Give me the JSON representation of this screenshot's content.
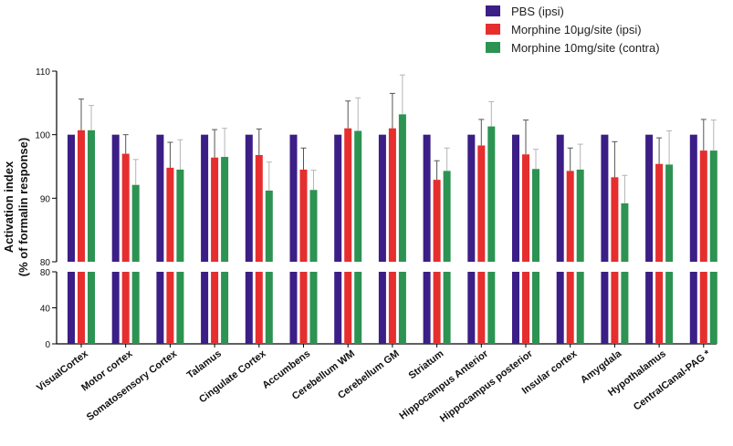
{
  "colors": {
    "pbs": "#3b1e86",
    "morphine_ipsi": "#e62e2e",
    "morphine_contra": "#2c9352",
    "error_pbs": "#555555",
    "error_morphine_ipsi": "#555555",
    "error_morphine_contra": "#b5b5b5"
  },
  "chart_data": {
    "type": "bar",
    "ylabel_line1": "Activation index",
    "ylabel_line2": "(% of formalin response)",
    "y_axis_break": true,
    "upper_panel": {
      "ylim": [
        80,
        110
      ],
      "ticks": [
        "80",
        "90",
        "100",
        "110"
      ]
    },
    "lower_panel": {
      "ylim": [
        0,
        80
      ],
      "ticks": [
        "0",
        "40",
        "80"
      ]
    },
    "categories": [
      "VisualCortex",
      "Motor cortex",
      "Somatosensory Cortex",
      "Talamus",
      "Cingulate Cortex",
      "Accumbens",
      "Cerebellum WM",
      "Cerebellum GM",
      "Striatum",
      "Hippocampus Anterior",
      "Hippocampus posterior",
      "Insular cortex",
      "Amygdala",
      "Hypothalamus",
      "CentralCanal-PAG *"
    ],
    "series": [
      {
        "name": "PBS (ipsi)",
        "color_key": "pbs",
        "values": [
          100,
          100,
          100,
          100,
          100,
          100,
          100,
          100,
          100,
          100,
          100,
          100,
          100,
          100,
          100
        ],
        "errors": [
          0,
          0,
          0,
          0,
          0,
          0,
          0,
          0,
          0,
          0,
          0,
          0,
          0,
          0,
          0
        ]
      },
      {
        "name": "Morphine 10μg/site (ipsi)",
        "color_key": "morphine_ipsi",
        "values": [
          100.7,
          97.0,
          94.8,
          96.4,
          96.8,
          94.5,
          101.0,
          101.0,
          92.9,
          98.3,
          96.9,
          94.3,
          93.3,
          95.4,
          97.5
        ],
        "errors": [
          4.9,
          3.0,
          4.0,
          4.4,
          4.1,
          3.4,
          4.3,
          5.5,
          3.0,
          4.1,
          5.4,
          3.6,
          5.6,
          4.1,
          4.9
        ]
      },
      {
        "name": "Morphine 10mg/site (contra)",
        "color_key": "morphine_contra",
        "values": [
          100.7,
          92.1,
          94.5,
          96.5,
          91.2,
          91.3,
          100.6,
          103.2,
          94.3,
          101.3,
          94.6,
          94.5,
          89.2,
          95.3,
          97.5
        ],
        "errors": [
          3.9,
          4.0,
          4.7,
          4.5,
          4.5,
          3.1,
          5.2,
          6.2,
          3.6,
          3.9,
          3.1,
          4.0,
          4.4,
          5.3,
          4.8
        ]
      }
    ]
  }
}
